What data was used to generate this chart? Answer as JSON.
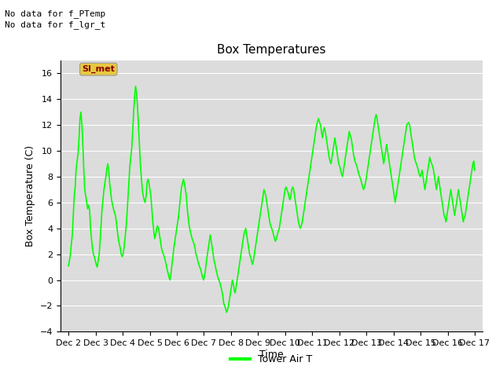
{
  "title": "Box Temperatures",
  "xlabel": "Time",
  "ylabel": "Box Temperature (C)",
  "ylim": [
    -4,
    17
  ],
  "yticks": [
    -4,
    -2,
    0,
    2,
    4,
    6,
    8,
    10,
    12,
    14,
    16
  ],
  "line_color": "#00FF00",
  "line_width": 1.2,
  "bg_color": "#DCDCDC",
  "fig_bg": "#FFFFFF",
  "no_data_text1": "No data for f_PTemp",
  "no_data_text2": "No data for f_lgr_t",
  "box_label": "SI_met",
  "legend_label": "Tower Air T",
  "x_tick_labels": [
    "Dec 2",
    "Dec 3",
    "Dec 4",
    "Dec 5",
    "Dec 6",
    "Dec 7",
    "Dec 8",
    "Dec 9",
    "Dec 10",
    "Dec 11",
    "Dec 12",
    "Dec 13",
    "Dec 14",
    "Dec 15",
    "Dec 16",
    "Dec 17"
  ],
  "temp_data": [
    1.1,
    1.5,
    2.0,
    2.8,
    3.5,
    5.0,
    6.5,
    7.2,
    8.6,
    9.2,
    9.8,
    11.0,
    12.5,
    13.0,
    12.0,
    10.5,
    8.5,
    7.0,
    6.5,
    6.0,
    5.5,
    5.8,
    5.5,
    4.0,
    3.2,
    2.5,
    2.0,
    1.8,
    1.5,
    1.2,
    1.0,
    1.5,
    2.0,
    3.0,
    4.2,
    5.5,
    6.2,
    7.0,
    7.5,
    8.0,
    8.6,
    9.0,
    8.5,
    7.5,
    6.8,
    6.2,
    5.8,
    5.5,
    5.2,
    5.0,
    4.5,
    3.8,
    3.2,
    2.8,
    2.5,
    2.0,
    1.8,
    2.0,
    2.5,
    3.2,
    4.0,
    5.0,
    6.2,
    7.5,
    8.8,
    9.5,
    10.2,
    11.5,
    13.0,
    14.2,
    15.0,
    14.5,
    13.5,
    12.0,
    10.5,
    9.0,
    8.0,
    7.0,
    6.5,
    6.2,
    6.0,
    6.5,
    7.5,
    7.8,
    7.5,
    7.0,
    6.5,
    5.5,
    4.5,
    3.8,
    3.2,
    3.5,
    4.0,
    4.2,
    4.0,
    3.5,
    3.0,
    2.5,
    2.2,
    2.0,
    1.8,
    1.5,
    1.2,
    0.8,
    0.5,
    0.2,
    0.0,
    0.5,
    1.2,
    1.8,
    2.5,
    3.0,
    3.5,
    4.0,
    4.5,
    5.0,
    5.8,
    6.5,
    7.2,
    7.5,
    7.8,
    7.5,
    7.0,
    6.5,
    5.5,
    4.8,
    4.2,
    3.8,
    3.5,
    3.2,
    3.0,
    2.8,
    2.5,
    2.0,
    1.8,
    1.5,
    1.2,
    1.0,
    0.8,
    0.5,
    0.2,
    0.0,
    0.3,
    0.8,
    1.5,
    2.0,
    2.5,
    3.0,
    3.5,
    3.0,
    2.5,
    2.0,
    1.5,
    1.2,
    0.8,
    0.5,
    0.2,
    0.0,
    -0.2,
    -0.5,
    -0.8,
    -1.2,
    -1.8,
    -2.0,
    -2.2,
    -2.5,
    -2.3,
    -2.0,
    -1.5,
    -1.0,
    -0.5,
    0.0,
    -0.3,
    -0.8,
    -1.0,
    -0.5,
    0.0,
    0.5,
    1.0,
    1.5,
    2.0,
    2.5,
    3.0,
    3.5,
    3.8,
    4.0,
    3.5,
    3.0,
    2.5,
    2.0,
    1.8,
    1.5,
    1.2,
    1.5,
    2.0,
    2.5,
    3.0,
    3.5,
    4.0,
    4.5,
    5.0,
    5.5,
    6.0,
    6.5,
    7.0,
    6.8,
    6.5,
    6.0,
    5.5,
    5.0,
    4.5,
    4.2,
    4.0,
    3.8,
    3.5,
    3.2,
    3.0,
    3.2,
    3.5,
    3.8,
    4.0,
    4.5,
    5.0,
    5.5,
    6.0,
    6.5,
    7.0,
    7.2,
    7.0,
    6.8,
    6.5,
    6.2,
    6.5,
    7.0,
    7.2,
    7.0,
    6.5,
    6.0,
    5.5,
    5.0,
    4.5,
    4.2,
    4.0,
    4.2,
    4.5,
    5.0,
    5.5,
    6.0,
    6.5,
    7.0,
    7.5,
    8.0,
    8.5,
    9.0,
    9.5,
    10.0,
    10.5,
    11.0,
    11.5,
    12.0,
    12.3,
    12.5,
    12.2,
    12.0,
    11.5,
    11.0,
    11.5,
    11.8,
    11.5,
    11.0,
    10.5,
    10.0,
    9.5,
    9.2,
    9.0,
    9.5,
    10.0,
    10.5,
    11.0,
    10.5,
    10.0,
    9.5,
    9.0,
    8.8,
    8.5,
    8.2,
    8.0,
    8.5,
    9.0,
    9.5,
    10.0,
    10.5,
    11.0,
    11.5,
    11.2,
    11.0,
    10.5,
    10.0,
    9.5,
    9.2,
    9.0,
    8.8,
    8.5,
    8.2,
    8.0,
    7.8,
    7.5,
    7.2,
    7.0,
    7.2,
    7.5,
    8.0,
    8.5,
    9.0,
    9.5,
    10.0,
    10.5,
    11.0,
    11.5,
    12.0,
    12.5,
    12.8,
    12.5,
    12.0,
    11.5,
    11.0,
    10.5,
    10.0,
    9.5,
    9.0,
    9.5,
    10.0,
    10.5,
    10.0,
    9.5,
    9.0,
    8.5,
    8.0,
    7.5,
    7.0,
    6.5,
    6.0,
    6.5,
    7.0,
    7.5,
    8.0,
    8.5,
    9.0,
    9.5,
    10.0,
    10.5,
    11.0,
    11.5,
    12.0,
    12.1,
    12.2,
    12.0,
    11.5,
    11.0,
    10.5,
    10.0,
    9.5,
    9.2,
    9.0,
    8.8,
    8.5,
    8.2,
    8.0,
    8.2,
    8.5,
    8.0,
    7.5,
    7.0,
    7.5,
    8.0,
    8.5,
    9.0,
    9.5,
    9.2,
    9.0,
    8.8,
    8.5,
    8.0,
    7.5,
    7.0,
    7.5,
    8.0,
    7.5,
    7.0,
    6.5,
    6.0,
    5.5,
    5.0,
    4.8,
    4.5,
    5.0,
    5.5,
    6.0,
    6.5,
    7.0,
    6.5,
    6.0,
    5.5,
    5.0,
    5.5,
    6.0,
    6.5,
    7.0,
    6.5,
    6.0,
    5.5,
    5.0,
    4.5,
    4.8,
    5.0,
    5.5,
    6.0,
    6.5,
    7.0,
    7.5,
    8.0,
    8.5,
    9.0,
    9.2,
    8.5
  ]
}
